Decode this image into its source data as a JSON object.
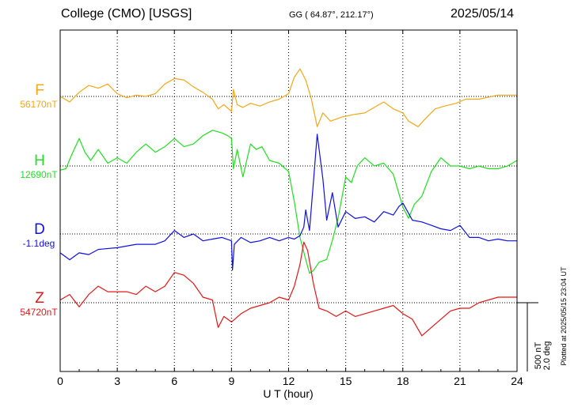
{
  "header": {
    "station": "College (CMO)  [USGS]",
    "coords": "GG ( 64.87°, 212.17°)",
    "date": "2025/05/14"
  },
  "footer": {
    "plotted": "Plotted at 2025/05/15 23:04 UT"
  },
  "chart_data": {
    "type": "line",
    "title": "College (CMO)  [USGS]",
    "xlabel": "U T (hour)",
    "xlim": [
      0,
      24
    ],
    "xticks": [
      "0",
      "3",
      "6",
      "9",
      "12",
      "15",
      "18",
      "21",
      "24"
    ],
    "grid": true,
    "scale_bar": {
      "line1": "500 nT",
      "line2": "2.0 deg"
    },
    "series": [
      {
        "name": "F",
        "baseline_label": "56170nT",
        "color": "#f0a818",
        "x": [
          0,
          0.5,
          1,
          1.5,
          2,
          2.5,
          3,
          3.5,
          4,
          4.5,
          5,
          5.5,
          6,
          6.5,
          7,
          7.5,
          8,
          8.3,
          8.6,
          9,
          9.1,
          9.3,
          9.6,
          10,
          10.5,
          11,
          11.5,
          12,
          12.3,
          12.6,
          12.9,
          13.2,
          13.5,
          13.8,
          14.2,
          14.8,
          15.5,
          16,
          16.5,
          17,
          17.5,
          18,
          18.3,
          18.8,
          19.2,
          19.7,
          20.2,
          20.8,
          21.3,
          22,
          23,
          24
        ],
        "values": [
          0,
          -40,
          30,
          80,
          60,
          90,
          20,
          -10,
          10,
          0,
          20,
          90,
          130,
          120,
          70,
          30,
          -20,
          -90,
          -60,
          -110,
          50,
          -60,
          -80,
          -50,
          -70,
          -40,
          -20,
          20,
          140,
          200,
          120,
          -20,
          -220,
          -120,
          -180,
          -150,
          -130,
          -120,
          -80,
          -40,
          -90,
          -120,
          -180,
          -220,
          -160,
          -90,
          -70,
          -50,
          -20,
          -20,
          10,
          10
        ]
      },
      {
        "name": "H",
        "baseline_label": "12690nT",
        "color": "#22dd22",
        "x": [
          0,
          0.3,
          0.6,
          1,
          1.3,
          1.6,
          2,
          2.5,
          3,
          3.5,
          4,
          4.5,
          5,
          5.5,
          6,
          6.5,
          7,
          7.5,
          8,
          8.5,
          8.8,
          9,
          9.1,
          9.3,
          9.6,
          10,
          10.3,
          10.6,
          11,
          11.5,
          12,
          12.3,
          12.6,
          12.9,
          13.1,
          13.3,
          13.6,
          14,
          14.3,
          14.6,
          15,
          15.3,
          15.6,
          16,
          16.5,
          17,
          17.5,
          18,
          18.3,
          18.6,
          19,
          19.5,
          20,
          20.5,
          21,
          21.5,
          22,
          22.5,
          23,
          23.5,
          24
        ],
        "values": [
          -30,
          -20,
          80,
          200,
          100,
          40,
          120,
          20,
          60,
          20,
          100,
          160,
          100,
          140,
          200,
          140,
          160,
          220,
          260,
          240,
          220,
          200,
          -20,
          120,
          -80,
          160,
          120,
          140,
          40,
          20,
          -40,
          -260,
          -520,
          -680,
          -780,
          -760,
          -700,
          -680,
          -540,
          -380,
          -80,
          -120,
          0,
          60,
          0,
          20,
          -60,
          -300,
          -380,
          -280,
          -220,
          -40,
          60,
          0,
          0,
          -20,
          0,
          -20,
          -20,
          0,
          40
        ]
      },
      {
        "name": "D",
        "baseline_label": "-1.1deg",
        "color": "#1010e0",
        "x": [
          0,
          0.5,
          1,
          1.5,
          2,
          3,
          4,
          5,
          5.5,
          6,
          6.5,
          7,
          7.5,
          8,
          8.5,
          9,
          9.05,
          9.15,
          9.5,
          10,
          10.5,
          11,
          11.5,
          12,
          12.3,
          12.6,
          12.8,
          12.9,
          13.1,
          13.3,
          13.5,
          13.8,
          14,
          14.3,
          14.6,
          15,
          15.5,
          16,
          16.5,
          17,
          17.5,
          17.8,
          18,
          18.2,
          18.5,
          19,
          19.5,
          20,
          20.5,
          21,
          21.5,
          22,
          22.5,
          23,
          23.5,
          24
        ],
        "values": [
          -0.55,
          -0.75,
          -0.55,
          -0.6,
          -0.45,
          -0.4,
          -0.3,
          -0.3,
          -0.2,
          0.1,
          -0.1,
          0,
          -0.2,
          -0.15,
          -0.1,
          -0.2,
          -1.05,
          -0.3,
          -0.1,
          -0.25,
          -0.2,
          -0.1,
          -0.2,
          -0.1,
          -0.15,
          -0.05,
          0.2,
          0.7,
          0.1,
          1.5,
          2.9,
          1.6,
          0.4,
          1.2,
          0.2,
          0.65,
          0.45,
          0.5,
          0.35,
          0.65,
          0.55,
          0.8,
          0.9,
          0.7,
          0.4,
          0.35,
          0.25,
          0.15,
          0.1,
          0.25,
          -0.1,
          -0.1,
          -0.2,
          -0.15,
          -0.2,
          -0.2
        ]
      },
      {
        "name": "Z",
        "baseline_label": "54720nT",
        "color": "#e01818",
        "x": [
          0,
          0.5,
          1,
          1.5,
          2,
          2.5,
          3,
          3.5,
          4,
          4.5,
          5,
          5.5,
          6,
          6.5,
          7,
          7.5,
          8,
          8.3,
          8.6,
          9,
          9.5,
          10,
          10.5,
          11,
          11.5,
          12,
          12.3,
          12.6,
          12.8,
          13,
          13.3,
          13.6,
          14,
          14.5,
          15,
          15.5,
          16,
          16.5,
          17,
          17.5,
          18,
          18.5,
          19,
          19.5,
          20,
          20.5,
          21,
          21.5,
          22,
          22.5,
          23,
          23.5,
          24
        ],
        "values": [
          20,
          60,
          -30,
          60,
          120,
          80,
          80,
          80,
          60,
          120,
          80,
          120,
          220,
          200,
          140,
          40,
          20,
          -180,
          -100,
          -140,
          -80,
          -40,
          -20,
          0,
          40,
          20,
          120,
          280,
          440,
          380,
          140,
          -40,
          -60,
          -100,
          -60,
          -100,
          -80,
          -60,
          -40,
          -20,
          -80,
          -120,
          -240,
          -180,
          -120,
          -60,
          -40,
          -40,
          0,
          20,
          40,
          40,
          40
        ]
      }
    ]
  }
}
